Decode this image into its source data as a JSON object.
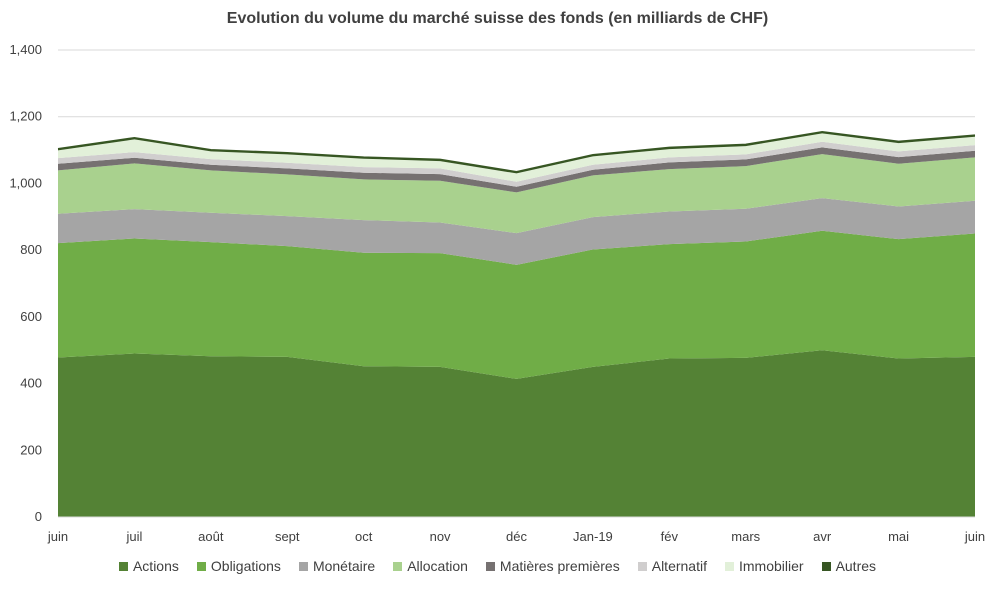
{
  "chart_data": {
    "type": "area",
    "stacked": true,
    "title": "Evolution du volume du marché suisse des fonds (en milliards de CHF)",
    "xlabel": "",
    "ylabel": "",
    "categories": [
      "juin",
      "juil",
      "août",
      "sept",
      "oct",
      "nov",
      "déc",
      "Jan-19",
      "fév",
      "mars",
      "avr",
      "mai",
      "juin"
    ],
    "ylim": [
      0,
      1400
    ],
    "yticks": [
      "0",
      "200",
      "400",
      "600",
      "800",
      "1,000",
      "1,200",
      "1,400"
    ],
    "ytick_values": [
      0,
      200,
      400,
      600,
      800,
      1000,
      1200,
      1400
    ],
    "grid": true,
    "legend_position": "bottom",
    "series": [
      {
        "name": "Actions",
        "color": "#548235",
        "values": [
          478,
          490,
          482,
          480,
          452,
          450,
          414,
          450,
          475,
          477,
          500,
          475,
          480
        ]
      },
      {
        "name": "Obligations",
        "color": "#70AD47",
        "values": [
          343,
          345,
          342,
          332,
          340,
          341,
          342,
          352,
          343,
          349,
          358,
          358,
          370
        ]
      },
      {
        "name": "Monétaire",
        "color": "#A5A5A5",
        "values": [
          88,
          88,
          88,
          90,
          98,
          92,
          95,
          97,
          98,
          98,
          98,
          98,
          98
        ]
      },
      {
        "name": "Allocation",
        "color": "#A9D18E",
        "values": [
          130,
          137,
          127,
          125,
          122,
          125,
          122,
          125,
          127,
          128,
          132,
          128,
          130
        ]
      },
      {
        "name": "Matières premières",
        "color": "#767171",
        "values": [
          20,
          17,
          17,
          18,
          20,
          20,
          17,
          17,
          20,
          20,
          20,
          20,
          20
        ]
      },
      {
        "name": "Alternatif",
        "color": "#D0CECE",
        "values": [
          17,
          17,
          17,
          17,
          17,
          17,
          15,
          15,
          15,
          15,
          17,
          17,
          17
        ]
      },
      {
        "name": "Immobilier",
        "color": "#E2F0D9",
        "values": [
          23,
          38,
          23,
          25,
          25,
          22,
          25,
          25,
          25,
          25,
          25,
          25,
          25
        ]
      },
      {
        "name": "Autres",
        "color": "#375623",
        "values": [
          5,
          5,
          5,
          5,
          5,
          5,
          5,
          5,
          5,
          5,
          5,
          5,
          5
        ]
      }
    ]
  }
}
